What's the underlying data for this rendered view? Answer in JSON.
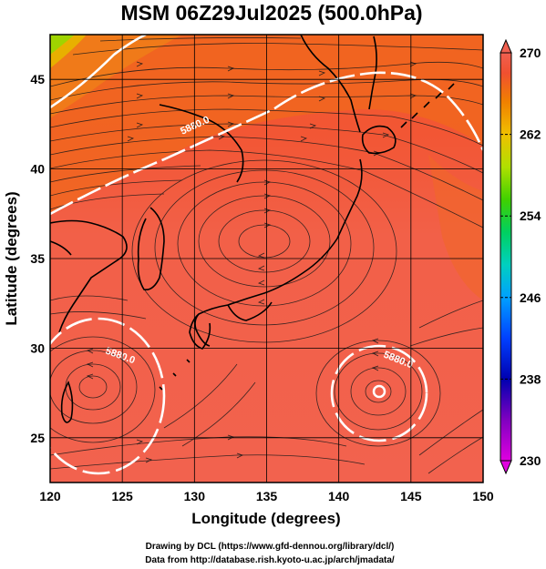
{
  "title": "MSM 06Z29Jul2025 (500.0hPa)",
  "x_axis": {
    "label": "Longitude (degrees)",
    "range": [
      120,
      150
    ],
    "ticks": [
      "120",
      "125",
      "130",
      "135",
      "140",
      "145",
      "150"
    ]
  },
  "y_axis": {
    "label": "Latitude  (degrees)",
    "range": [
      22.5,
      47.5
    ],
    "ticks": [
      "25",
      "30",
      "35",
      "40",
      "45"
    ]
  },
  "colorbar": {
    "range": [
      230,
      270
    ],
    "ticks": [
      "230",
      "238",
      "246",
      "254",
      "262",
      "270"
    ],
    "colors": [
      "#e000e0",
      "#8000c0",
      "#0000b0",
      "#0040ff",
      "#00a0ff",
      "#00d0c0",
      "#00d060",
      "#40d000",
      "#b0e000",
      "#f0c000",
      "#f08000",
      "#f05030",
      "#f06050"
    ]
  },
  "contours": [
    {
      "label": "5880.0"
    },
    {
      "label": "5880.0"
    },
    {
      "label": "5880.0"
    }
  ],
  "credits": {
    "line1": "Drawing by DCL (https://www.gfd-dennou.org/library/dcl/)",
    "line2": "Data from http://database.rish.kyoto-u.ac.jp/arch/jmadata/"
  }
}
